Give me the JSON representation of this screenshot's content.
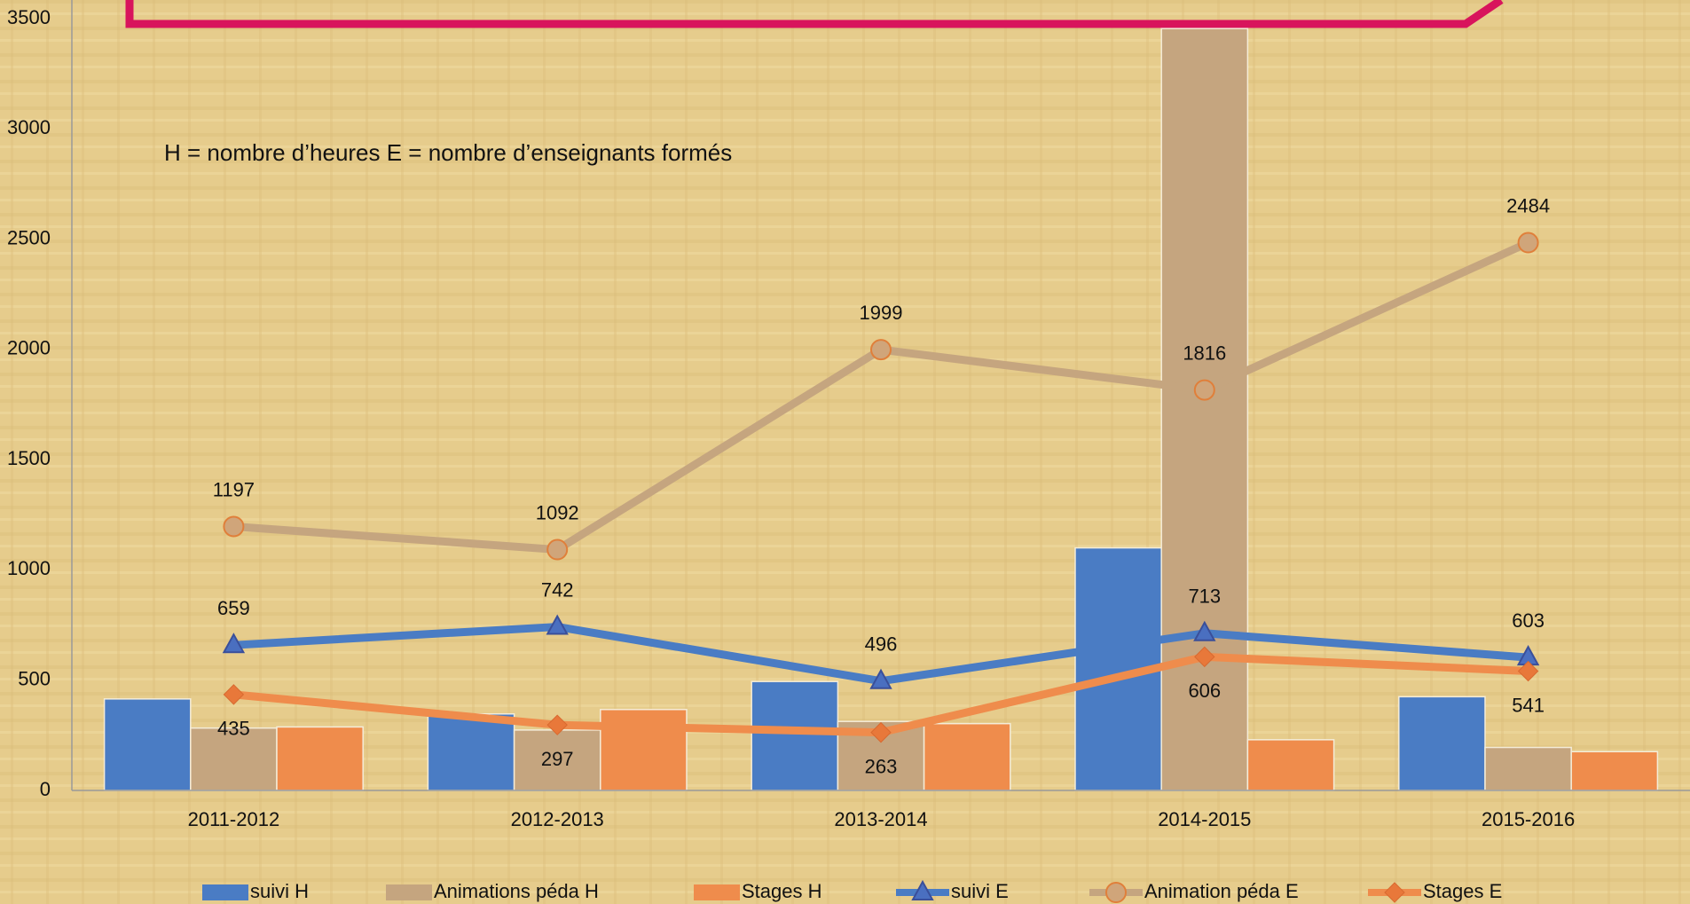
{
  "chart_data": {
    "type": "bar_line",
    "annotation": "H = nombre d’heures  E = nombre d’enseignants formés",
    "categories": [
      "2011-2012",
      "2012-2013",
      "2013-2014",
      "2014-2015",
      "2015-2016"
    ],
    "ylim": [
      0,
      3500
    ],
    "yticks": [
      0,
      500,
      1000,
      1500,
      2000,
      2500,
      3000,
      3500
    ],
    "series": [
      {
        "name": "suivi H",
        "kind": "bar",
        "color": "#4a7cc4",
        "values": [
          415,
          347,
          494,
          1100,
          425
        ]
      },
      {
        "name": "Animations péda H",
        "kind": "bar",
        "color": "#c5a57f",
        "values": [
          283,
          274,
          313,
          3455,
          195
        ]
      },
      {
        "name": "Stages H",
        "kind": "bar",
        "color": "#ef8c4c",
        "values": [
          288,
          367,
          303,
          230,
          176
        ]
      },
      {
        "name": "suivi E",
        "kind": "line",
        "marker": "triangle",
        "color": "#4a7cc4",
        "values": [
          659,
          742,
          496,
          713,
          603
        ]
      },
      {
        "name": "Animation péda E",
        "kind": "line",
        "marker": "circle",
        "color": "#c5a57f",
        "values": [
          1197,
          1092,
          1999,
          1816,
          2484
        ]
      },
      {
        "name": "Stages E",
        "kind": "line",
        "marker": "diamond",
        "color": "#ef8c4c",
        "values": [
          435,
          297,
          263,
          606,
          541
        ]
      }
    ]
  }
}
